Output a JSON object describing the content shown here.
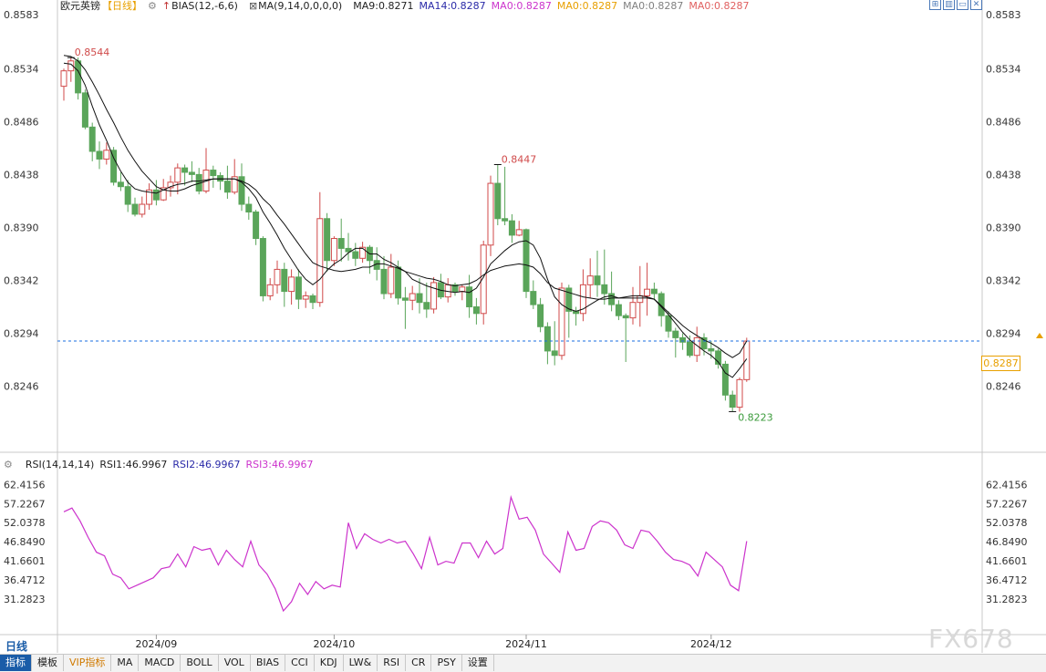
{
  "header": {
    "symbol": "欧元英镑",
    "period_tag": "【日线】",
    "bias": "BIAS(12,-6,6)",
    "ma_params": "MA(9,14,0,0,0,0)",
    "ma9": "MA9:0.8271",
    "ma14": "MA14:0.8287",
    "ma0a": "MA0:0.8287",
    "ma0b": "MA0:0.8287",
    "ma0c": "MA0:0.8287",
    "ma0d": "MA0:0.8287"
  },
  "rsi_header": {
    "params": "RSI(14,14,14)",
    "rsi1": "RSI1:46.9967",
    "rsi2": "RSI2:46.9967",
    "rsi3": "RSI3:46.9967"
  },
  "toolbar_icons": [
    "grid-icon",
    "layout-icon",
    "window-icon",
    "close-icon"
  ],
  "current_price_label": "0.8287",
  "period_label": "日线",
  "tabs": [
    "指标",
    "模板",
    "VIP指标",
    "MA",
    "MACD",
    "BOLL",
    "VOL",
    "BIAS",
    "CCI",
    "KDJ",
    "LW&",
    "RSI",
    "CR",
    "PSY",
    "设置"
  ],
  "watermark": "FX678",
  "colors": {
    "up": "#d04a4a",
    "down": "#5aa55a",
    "ma9": "#000000",
    "ma14": "#000000",
    "rsi": "#cc33cc",
    "price_line": "#1a6ee0",
    "ma14_label": "#2a2aa8",
    "ma0a_label": "#cc33cc",
    "ma0b_label": "#e8a000",
    "ma0c_label": "#808080",
    "ma0d_label": "#e06060"
  },
  "chart_data": [
    {
      "type": "candlestick",
      "title": "欧元英镑",
      "y_ticks": [
        "0.8583",
        "0.8534",
        "0.8486",
        "0.8438",
        "0.8390",
        "0.8342",
        "0.8294",
        "0.8246"
      ],
      "ylim": [
        0.8206,
        0.8583
      ],
      "x_ticks": [
        "2024/09",
        "2024/10",
        "2024/11",
        "2024/12"
      ],
      "annotations": [
        {
          "text": "0.8544",
          "type": "high"
        },
        {
          "text": "0.8447",
          "type": "high"
        },
        {
          "text": "0.8223",
          "type": "low"
        }
      ],
      "last_price": 0.8287,
      "candles": [
        [
          0.8518,
          0.8532,
          0.8505,
          0.8534
        ],
        [
          0.8532,
          0.8541,
          0.8522,
          0.8544
        ],
        [
          0.8541,
          0.8512,
          0.8506,
          0.8544
        ],
        [
          0.8512,
          0.8481,
          0.8479,
          0.8515
        ],
        [
          0.8481,
          0.8459,
          0.845,
          0.8485
        ],
        [
          0.8459,
          0.8452,
          0.8443,
          0.8468
        ],
        [
          0.8452,
          0.846,
          0.8447,
          0.8467
        ],
        [
          0.846,
          0.8431,
          0.8428,
          0.8463
        ],
        [
          0.8431,
          0.8427,
          0.8423,
          0.844
        ],
        [
          0.8427,
          0.8411,
          0.8404,
          0.8433
        ],
        [
          0.8411,
          0.8402,
          0.84,
          0.8417
        ],
        [
          0.8402,
          0.8411,
          0.8399,
          0.8418
        ],
        [
          0.8411,
          0.8424,
          0.8406,
          0.843
        ],
        [
          0.8424,
          0.8415,
          0.841,
          0.8433
        ],
        [
          0.8415,
          0.8426,
          0.8414,
          0.8434
        ],
        [
          0.8426,
          0.8431,
          0.8418,
          0.8437
        ],
        [
          0.8431,
          0.8444,
          0.842,
          0.8448
        ],
        [
          0.8444,
          0.844,
          0.8428,
          0.8447
        ],
        [
          0.844,
          0.8438,
          0.8431,
          0.845
        ],
        [
          0.8438,
          0.8423,
          0.842,
          0.8444
        ],
        [
          0.8423,
          0.8442,
          0.8421,
          0.8462
        ],
        [
          0.8442,
          0.8437,
          0.8426,
          0.8446
        ],
        [
          0.8437,
          0.8432,
          0.8424,
          0.844
        ],
        [
          0.8432,
          0.8422,
          0.8416,
          0.8446
        ],
        [
          0.8422,
          0.8436,
          0.842,
          0.8452
        ],
        [
          0.8436,
          0.8411,
          0.8405,
          0.8448
        ],
        [
          0.8411,
          0.8404,
          0.8397,
          0.8418
        ],
        [
          0.8404,
          0.838,
          0.8374,
          0.8406
        ],
        [
          0.838,
          0.8328,
          0.8323,
          0.8382
        ],
        [
          0.8328,
          0.8338,
          0.8324,
          0.8344
        ],
        [
          0.8338,
          0.8352,
          0.833,
          0.836
        ],
        [
          0.8352,
          0.8332,
          0.8318,
          0.8358
        ],
        [
          0.8332,
          0.8345,
          0.832,
          0.8352
        ],
        [
          0.8345,
          0.8325,
          0.8316,
          0.8352
        ],
        [
          0.8325,
          0.8328,
          0.8317,
          0.8332
        ],
        [
          0.8328,
          0.8322,
          0.8316,
          0.833
        ],
        [
          0.8322,
          0.8398,
          0.8318,
          0.8422
        ],
        [
          0.8398,
          0.836,
          0.835,
          0.8403
        ],
        [
          0.836,
          0.838,
          0.8355,
          0.8382
        ],
        [
          0.838,
          0.8371,
          0.8359,
          0.8398
        ],
        [
          0.8371,
          0.8368,
          0.836,
          0.8385
        ],
        [
          0.8368,
          0.8362,
          0.8355,
          0.8376
        ],
        [
          0.8362,
          0.8372,
          0.8358,
          0.8377
        ],
        [
          0.8372,
          0.836,
          0.8348,
          0.8374
        ],
        [
          0.836,
          0.8352,
          0.8342,
          0.8372
        ],
        [
          0.8352,
          0.833,
          0.8325,
          0.8364
        ],
        [
          0.833,
          0.8354,
          0.8326,
          0.8366
        ],
        [
          0.8354,
          0.8326,
          0.832,
          0.836
        ],
        [
          0.8326,
          0.8324,
          0.8298,
          0.8336
        ],
        [
          0.8324,
          0.833,
          0.8315,
          0.8337
        ],
        [
          0.833,
          0.8322,
          0.8312,
          0.8344
        ],
        [
          0.8322,
          0.8316,
          0.8308,
          0.834
        ],
        [
          0.8316,
          0.834,
          0.8312,
          0.8345
        ],
        [
          0.834,
          0.8327,
          0.8325,
          0.8348
        ],
        [
          0.8327,
          0.8338,
          0.8322,
          0.8344
        ],
        [
          0.8338,
          0.8332,
          0.8328,
          0.834
        ],
        [
          0.8332,
          0.8336,
          0.8324,
          0.8338
        ],
        [
          0.8336,
          0.8318,
          0.8308,
          0.8347
        ],
        [
          0.8318,
          0.8312,
          0.8302,
          0.8326
        ],
        [
          0.8312,
          0.8374,
          0.8302,
          0.8378
        ],
        [
          0.8374,
          0.843,
          0.8364,
          0.8437
        ],
        [
          0.843,
          0.8398,
          0.8392,
          0.8447
        ],
        [
          0.8398,
          0.8396,
          0.8392,
          0.8445
        ],
        [
          0.8396,
          0.8383,
          0.8376,
          0.8402
        ],
        [
          0.8383,
          0.8388,
          0.8382,
          0.8396
        ],
        [
          0.8388,
          0.8332,
          0.8326,
          0.8389
        ],
        [
          0.8332,
          0.832,
          0.8316,
          0.8342
        ],
        [
          0.832,
          0.83,
          0.8295,
          0.8326
        ],
        [
          0.83,
          0.8278,
          0.8266,
          0.8304
        ],
        [
          0.8278,
          0.8274,
          0.8265,
          0.8305
        ],
        [
          0.8274,
          0.8335,
          0.827,
          0.834
        ],
        [
          0.8335,
          0.8314,
          0.829,
          0.8338
        ],
        [
          0.8314,
          0.8312,
          0.8301,
          0.8318
        ],
        [
          0.8312,
          0.8338,
          0.8305,
          0.8352
        ],
        [
          0.8338,
          0.8346,
          0.8326,
          0.8362
        ],
        [
          0.8346,
          0.8338,
          0.8327,
          0.8369
        ],
        [
          0.8338,
          0.833,
          0.832,
          0.837
        ],
        [
          0.833,
          0.832,
          0.8314,
          0.835
        ],
        [
          0.832,
          0.831,
          0.8306,
          0.8324
        ],
        [
          0.831,
          0.8308,
          0.8268,
          0.8312
        ],
        [
          0.8308,
          0.8322,
          0.8302,
          0.8336
        ],
        [
          0.8322,
          0.8328,
          0.83,
          0.8355
        ],
        [
          0.8328,
          0.8334,
          0.831,
          0.8358
        ],
        [
          0.8334,
          0.833,
          0.8324,
          0.834
        ],
        [
          0.833,
          0.831,
          0.83,
          0.8332
        ],
        [
          0.831,
          0.8296,
          0.829,
          0.8314
        ],
        [
          0.8296,
          0.829,
          0.8272,
          0.8299
        ],
        [
          0.829,
          0.8286,
          0.8279,
          0.8294
        ],
        [
          0.8286,
          0.8274,
          0.8272,
          0.8292
        ],
        [
          0.8274,
          0.829,
          0.8268,
          0.83
        ],
        [
          0.829,
          0.828,
          0.8274,
          0.8294
        ],
        [
          0.828,
          0.8278,
          0.8271,
          0.8287
        ],
        [
          0.8278,
          0.8266,
          0.8262,
          0.828
        ],
        [
          0.8266,
          0.8238,
          0.8233,
          0.8269
        ],
        [
          0.8238,
          0.8227,
          0.8223,
          0.8242
        ],
        [
          0.8227,
          0.8252,
          0.8223,
          0.8254
        ],
        [
          0.8252,
          0.8287,
          0.825,
          0.829
        ]
      ],
      "series": [
        {
          "name": "MA9",
          "values": [
            0.8539,
            0.8538,
            0.8532,
            0.8519,
            0.85,
            0.8483,
            0.8469,
            0.8453,
            0.8441,
            0.8431,
            0.8425,
            0.8423,
            0.8422,
            0.8421,
            0.8424,
            0.8427,
            0.8429,
            0.843,
            0.8432,
            0.8432,
            0.8433,
            0.8434,
            0.8434,
            0.8434,
            0.8434,
            0.8431,
            0.8425,
            0.8417,
            0.8404,
            0.8394,
            0.8383,
            0.8371,
            0.8361,
            0.8351,
            0.8343,
            0.8338,
            0.8343,
            0.8351,
            0.8357,
            0.8361,
            0.8367,
            0.8371,
            0.8371,
            0.8366,
            0.8366,
            0.8361,
            0.8358,
            0.8354,
            0.835,
            0.8343,
            0.834,
            0.8337,
            0.8335,
            0.8333,
            0.8332,
            0.8331,
            0.8332,
            0.8331,
            0.8335,
            0.8345,
            0.8357,
            0.8363,
            0.8369,
            0.8374,
            0.8377,
            0.8378,
            0.8374,
            0.8362,
            0.8343,
            0.8327,
            0.832,
            0.8316,
            0.8314,
            0.8316,
            0.832,
            0.8324,
            0.8327,
            0.8328,
            0.8326,
            0.8326,
            0.8326,
            0.8326,
            0.8326,
            0.8325,
            0.8318,
            0.8311,
            0.8303,
            0.8295,
            0.8288,
            0.8283,
            0.8278,
            0.8274,
            0.8268,
            0.8258,
            0.8254,
            0.8262,
            0.8271
          ]
        },
        {
          "name": "MA14",
          "values": [
            0.8546,
            0.8545,
            0.8541,
            0.8533,
            0.8522,
            0.851,
            0.8497,
            0.8485,
            0.8472,
            0.846,
            0.845,
            0.8441,
            0.8434,
            0.8427,
            0.8424,
            0.8423,
            0.8423,
            0.8425,
            0.8428,
            0.843,
            0.8432,
            0.8434,
            0.8434,
            0.8434,
            0.8434,
            0.8432,
            0.8429,
            0.8424,
            0.8416,
            0.841,
            0.8401,
            0.8393,
            0.8384,
            0.8375,
            0.8366,
            0.8358,
            0.8355,
            0.8353,
            0.8351,
            0.835,
            0.8351,
            0.8352,
            0.8354,
            0.8354,
            0.8357,
            0.8357,
            0.8355,
            0.8353,
            0.835,
            0.8348,
            0.8346,
            0.8344,
            0.8343,
            0.8341,
            0.8338,
            0.8337,
            0.8338,
            0.8339,
            0.8342,
            0.8347,
            0.8351,
            0.8353,
            0.8355,
            0.8356,
            0.8357,
            0.8356,
            0.8354,
            0.8348,
            0.834,
            0.8335,
            0.8333,
            0.8331,
            0.8329,
            0.8327,
            0.8326,
            0.8325,
            0.8325,
            0.8326,
            0.8326,
            0.8327,
            0.8328,
            0.8328,
            0.8327,
            0.8325,
            0.8319,
            0.8313,
            0.8307,
            0.8301,
            0.8296,
            0.8292,
            0.8288,
            0.8285,
            0.8281,
            0.8276,
            0.8272,
            0.8276,
            0.8287
          ]
        }
      ]
    },
    {
      "type": "line",
      "title": "RSI(14,14,14)",
      "y_ticks": [
        "62.4156",
        "57.2267",
        "52.0378",
        "46.8490",
        "41.6601",
        "36.4712",
        "31.2823"
      ],
      "ylim": [
        27.0,
        65.0
      ],
      "series": [
        {
          "name": "RSI1",
          "values": [
            55.0,
            56.0,
            52.5,
            48.0,
            44.0,
            43.0,
            38.0,
            37.0,
            34.0,
            35.0,
            36.0,
            37.0,
            39.5,
            40.0,
            43.5,
            40.0,
            45.5,
            44.5,
            45.0,
            40.5,
            44.5,
            42.0,
            40.0,
            47.0,
            40.5,
            38.0,
            34.0,
            28.0,
            30.5,
            35.5,
            32.5,
            36.0,
            34.0,
            35.0,
            34.5,
            52.0,
            45.0,
            49.0,
            47.5,
            46.5,
            47.5,
            46.5,
            47.0,
            43.5,
            39.5,
            48.0,
            40.5,
            41.5,
            41.0,
            46.5,
            46.5,
            42.5,
            47.0,
            43.5,
            45.0,
            59.0,
            53.0,
            53.5,
            50.0,
            43.5,
            41.0,
            38.5,
            49.5,
            44.5,
            45.0,
            51.0,
            52.5,
            52.0,
            50.0,
            46.0,
            45.0,
            50.0,
            49.5,
            47.0,
            44.0,
            42.0,
            41.5,
            40.5,
            37.5,
            44.0,
            42.0,
            40.0,
            35.0,
            33.5,
            47.0
          ]
        }
      ]
    }
  ]
}
